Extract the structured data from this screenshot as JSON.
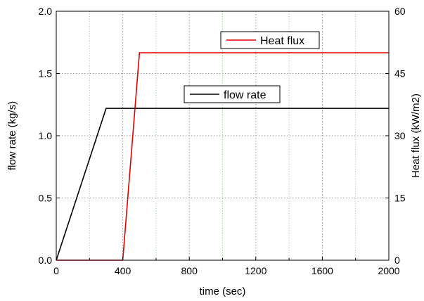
{
  "chart_data": {
    "type": "line",
    "xlabel": "time (sec)",
    "ylabel_left": "flow rate (kg/s)",
    "ylabel_right": "Heat flux (kW/m2)",
    "xlim": [
      0,
      2000
    ],
    "ylim_left": [
      0,
      2.0
    ],
    "ylim_right": [
      0,
      60
    ],
    "x_ticks": [
      0,
      400,
      800,
      1200,
      1600,
      2000
    ],
    "x_tick_labels": [
      "0",
      "400",
      "800",
      "1200",
      "1600",
      "2000"
    ],
    "y_left_ticks": [
      0,
      0.5,
      1.0,
      1.5,
      2.0
    ],
    "y_left_tick_labels": [
      "0.0",
      "0.5",
      "1.0",
      "1.5",
      "2.0"
    ],
    "y_right_ticks": [
      0,
      15,
      30,
      45,
      60
    ],
    "y_right_tick_labels": [
      "0",
      "15",
      "30",
      "45",
      "60"
    ],
    "x_grid_minor": [
      200,
      600,
      1000,
      1400,
      1800
    ],
    "grid": true,
    "series": [
      {
        "name": "flow rate",
        "axis": "left",
        "color": "#000000",
        "x": [
          0,
          300,
          2000
        ],
        "y": [
          0,
          1.22,
          1.22
        ]
      },
      {
        "name": "Heat flux",
        "axis": "right",
        "color": "#e00000",
        "x": [
          0,
          400,
          500,
          2000
        ],
        "y": [
          0,
          0,
          50,
          50
        ]
      }
    ]
  }
}
